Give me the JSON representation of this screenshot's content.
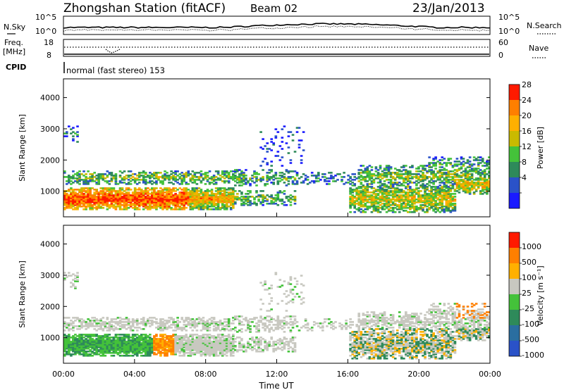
{
  "header": {
    "title": "Zhongshan Station (fitACF)",
    "beam": "Beam 02",
    "date": "23/Jan/2013"
  },
  "noise_panel": {
    "left_label": "N.Sky",
    "left_ticks": [
      "10^5",
      "10^0"
    ],
    "right_ticks": [
      "10^5",
      "10^0"
    ],
    "right_label": "N.Search"
  },
  "freq_panel": {
    "left_label_1": "Freq.",
    "left_label_2": "[MHz]",
    "left_ticks": [
      "18",
      "8"
    ],
    "right_ticks": [
      "60",
      "0"
    ],
    "right_label": "Nave"
  },
  "cpid": {
    "label": "CPID",
    "text": "normal (fast stereo) 153"
  },
  "x_axis": {
    "ticks": [
      "00:00",
      "04:00",
      "08:00",
      "12:00",
      "16:00",
      "20:00",
      "00:00"
    ],
    "label": "Time UT"
  },
  "colors": {
    "power": [
      "#1a1aff",
      "#2a52c8",
      "#2e8a5a",
      "#44c23a",
      "#c9ba00",
      "#ffb000",
      "#ff7f00",
      "#ff1a00"
    ],
    "velocity": [
      "#2a52c8",
      "#2a6ea0",
      "#2e8a5a",
      "#44c23a",
      "#c8c8c0",
      "#ffb000",
      "#ff7f00",
      "#ff1a00"
    ]
  },
  "chart_data": [
    {
      "type": "heatmap",
      "name": "power",
      "ylabel": "Slant Range [km]",
      "ylim": [
        180,
        4600
      ],
      "yticks": [
        1000,
        2000,
        3000,
        4000
      ],
      "xlim_hours": [
        0,
        24
      ],
      "colorbar": {
        "label": "Power [dB]",
        "ticks": [
          "28",
          "24",
          "20",
          "16",
          "12",
          "8",
          "4"
        ]
      }
    },
    {
      "type": "heatmap",
      "name": "velocity",
      "ylabel": "Slant Range [km]",
      "ylim": [
        180,
        4600
      ],
      "yticks": [
        1000,
        2000,
        3000,
        4000
      ],
      "xlim_hours": [
        0,
        24
      ],
      "colorbar": {
        "label": "Velocity [m s⁻¹]",
        "ticks": [
          "1000",
          "500",
          "100",
          "25",
          "-25",
          "-100",
          "-500",
          "-1000"
        ]
      }
    }
  ]
}
